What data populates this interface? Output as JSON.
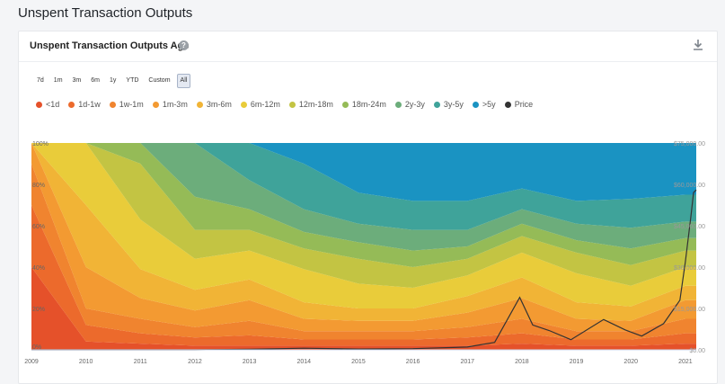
{
  "page": {
    "title": "Unspent Transaction Outputs"
  },
  "card": {
    "title": "Unspent Transaction Outputs Age",
    "help_glyph": "?",
    "download_icon": "download-icon"
  },
  "ranges": [
    "7d",
    "1m",
    "3m",
    "6m",
    "1y",
    "YTD",
    "Custom",
    "All"
  ],
  "active_range": "All",
  "chart_data": {
    "type": "area",
    "stacked": true,
    "normalized_percent": true,
    "x": [
      "2009",
      "2010",
      "2011",
      "2012",
      "2013",
      "2014",
      "2015",
      "2016",
      "2017",
      "2018",
      "2019",
      "2020",
      "2021"
    ],
    "xlabel": "",
    "ylabel": "",
    "y_ticks": [
      "0%",
      "20%",
      "40%",
      "60%",
      "80%",
      "100%"
    ],
    "y_right_ticks": [
      "$0.00",
      "$15,000.00",
      "$30,000.00",
      "$45,000.00",
      "$60,000.00",
      "$75,000.00"
    ],
    "ylim": [
      0,
      100
    ],
    "ylim_right": [
      0,
      75000
    ],
    "grid": false,
    "legend": "top",
    "series": [
      {
        "name": "<1d",
        "color": "#e5512a",
        "values": [
          40,
          4,
          3,
          2,
          2,
          2,
          2,
          2,
          2,
          3,
          2,
          2,
          3
        ]
      },
      {
        "name": "1d-1w",
        "color": "#ec6a2c",
        "values": [
          30,
          8,
          5,
          4,
          5,
          3,
          3,
          3,
          4,
          5,
          3,
          3,
          5
        ]
      },
      {
        "name": "1w-1m",
        "color": "#f0842f",
        "values": [
          20,
          8,
          7,
          5,
          7,
          4,
          4,
          4,
          5,
          7,
          4,
          4,
          7
        ]
      },
      {
        "name": "1m-3m",
        "color": "#f39a32",
        "values": [
          10,
          20,
          10,
          8,
          10,
          6,
          5,
          5,
          7,
          10,
          6,
          5,
          9
        ]
      },
      {
        "name": "3m-6m",
        "color": "#f1b436",
        "values": [
          0,
          30,
          14,
          10,
          10,
          8,
          6,
          6,
          8,
          10,
          8,
          7,
          7
        ]
      },
      {
        "name": "6m-12m",
        "color": "#e9cc3a",
        "values": [
          0,
          30,
          24,
          15,
          14,
          16,
          12,
          10,
          10,
          12,
          14,
          10,
          9
        ]
      },
      {
        "name": "12m-18m",
        "color": "#c3c443",
        "values": [
          0,
          0,
          27,
          14,
          10,
          10,
          12,
          10,
          8,
          8,
          10,
          10,
          8
        ]
      },
      {
        "name": "18m-24m",
        "color": "#95bb57",
        "values": [
          0,
          0,
          10,
          16,
          10,
          8,
          8,
          8,
          6,
          6,
          6,
          8,
          6
        ]
      },
      {
        "name": "2y-3y",
        "color": "#6cad7b",
        "values": [
          0,
          0,
          0,
          26,
          14,
          11,
          9,
          10,
          8,
          7,
          8,
          10,
          8
        ]
      },
      {
        "name": "3y-5y",
        "color": "#3fa39a",
        "values": [
          0,
          0,
          0,
          0,
          18,
          22,
          15,
          14,
          14,
          10,
          11,
          14,
          13
        ]
      },
      {
        "name": ">5y",
        "color": "#1a93c2",
        "values": [
          0,
          0,
          0,
          0,
          0,
          10,
          24,
          28,
          28,
          22,
          28,
          27,
          25
        ]
      }
    ],
    "price_series": {
      "name": "Price",
      "color": "#333333",
      "points": [
        [
          "2009",
          0
        ],
        [
          "2010",
          0
        ],
        [
          "2011",
          10
        ],
        [
          "2012",
          10
        ],
        [
          "2013",
          200
        ],
        [
          "2014",
          600
        ],
        [
          "2015",
          300
        ],
        [
          "2016",
          430
        ],
        [
          "2017",
          1000
        ],
        [
          "2017.5",
          2700
        ],
        [
          "2017.96",
          19000
        ],
        [
          "2018.2",
          9000
        ],
        [
          "2018.5",
          7000
        ],
        [
          "2018.9",
          3700
        ],
        [
          "2019.5",
          11000
        ],
        [
          "2019.9",
          7200
        ],
        [
          "2020.2",
          5000
        ],
        [
          "2020.6",
          9500
        ],
        [
          "2020.9",
          18000
        ],
        [
          "2021.0",
          32000
        ],
        [
          "2021.1",
          48000
        ],
        [
          "2021.15",
          57000
        ],
        [
          "2021.2",
          58000
        ]
      ]
    }
  }
}
